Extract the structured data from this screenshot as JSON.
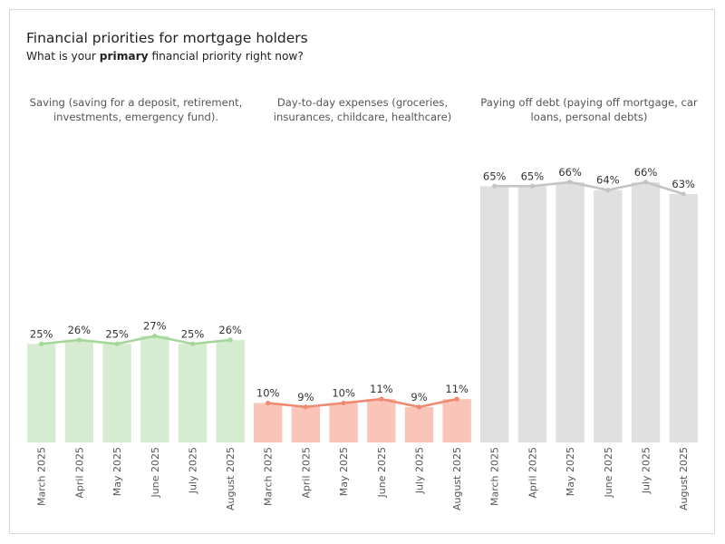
{
  "header": {
    "title": "Financial priorities for mortgage holders",
    "subtitle_prefix": "What is your ",
    "subtitle_bold": "primary",
    "subtitle_suffix": " financial priority right now?"
  },
  "colors": {
    "saving_bar": "#d5ecd1",
    "saving_line": "#a6d79a",
    "expenses_bar": "#fac5b8",
    "expenses_line": "#ef8a70",
    "debt_bar": "#e0e0e0",
    "debt_line": "#c4c4c4"
  },
  "chart_data": {
    "type": "bar",
    "title": "Financial priorities for mortgage holders",
    "subtitle": "What is your primary financial priority right now?",
    "categories": [
      "March 2025",
      "April 2025",
      "May 2025",
      "June 2025",
      "July 2025",
      "August 2025"
    ],
    "ylim": [
      0,
      70
    ],
    "grid": false,
    "unit": "%",
    "series": [
      {
        "name": "Saving (saving for a deposit, retirement, investments, emergency fund).",
        "values": [
          25,
          26,
          25,
          27,
          25,
          26
        ]
      },
      {
        "name": "Day-to-day expenses (groceries, insurances, childcare, healthcare)",
        "values": [
          10,
          9,
          10,
          11,
          9,
          11
        ]
      },
      {
        "name": "Paying off debt (paying off mortgage, car loans, personal debts)",
        "values": [
          65,
          65,
          66,
          64,
          66,
          63
        ]
      }
    ]
  }
}
